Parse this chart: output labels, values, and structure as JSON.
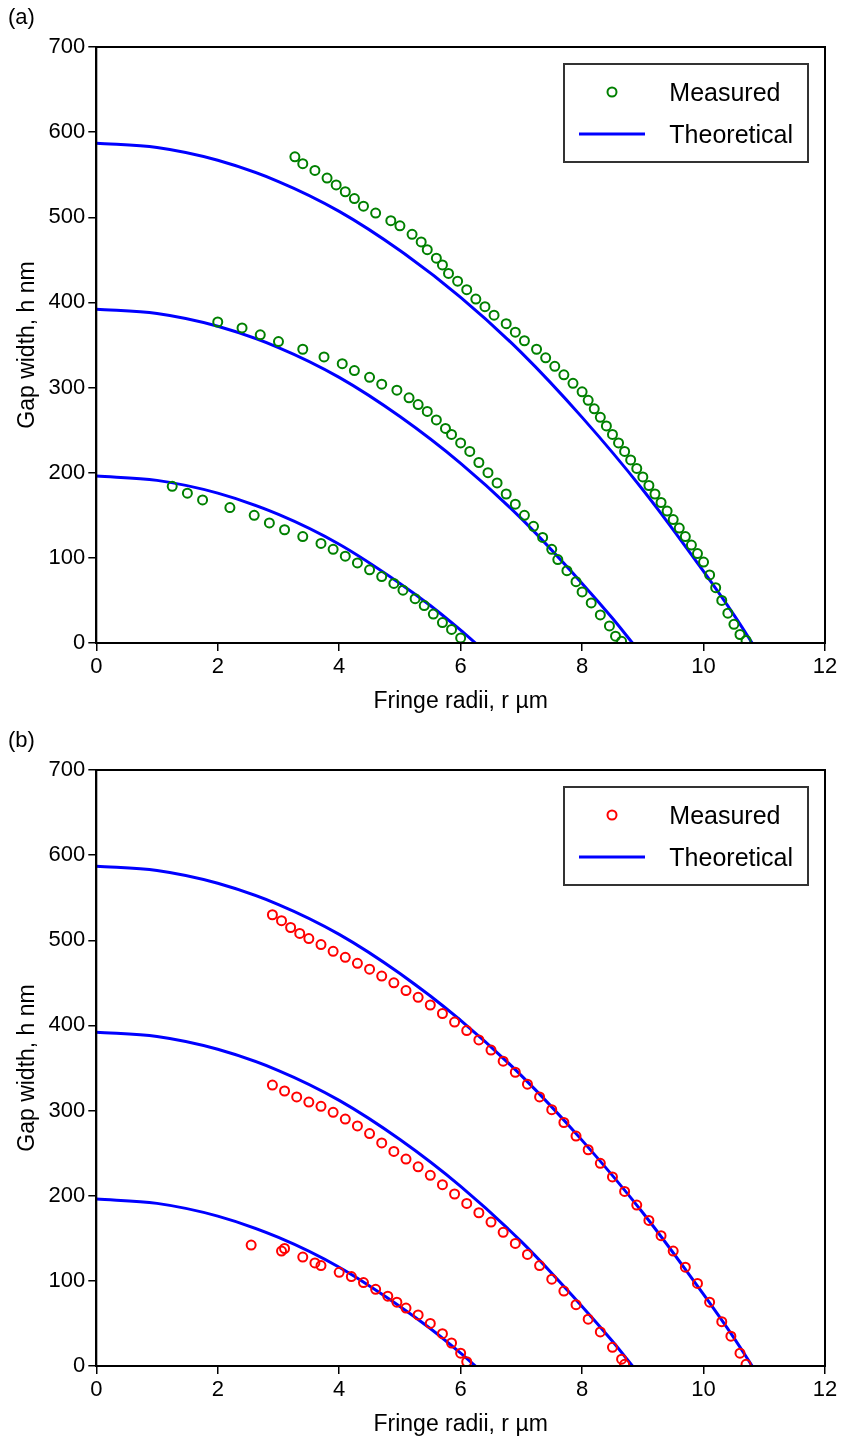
{
  "chart_data": [
    {
      "type": "scatter",
      "title": "(a)",
      "xlabel": "Fringe radii, r µm",
      "ylabel": "Gap width, h nm",
      "xlim": [
        0,
        12
      ],
      "xticks": [
        0,
        2,
        4,
        6,
        8,
        10,
        12
      ],
      "ylim": [
        0,
        700
      ],
      "yticks": [
        0,
        100,
        200,
        300,
        400,
        500,
        600,
        700
      ],
      "grid": false,
      "legend": "top right",
      "line_style": "solid",
      "series": [
        {
          "name": "Measured",
          "marker": "circle",
          "color": "#008000",
          "x": [
            3.27,
            3.4,
            3.6,
            3.8,
            3.95,
            4.1,
            4.25,
            4.4,
            4.6,
            4.85,
            5.0,
            5.2,
            5.35,
            5.45,
            5.6,
            5.7,
            5.8,
            5.95,
            6.1,
            6.25,
            6.4,
            6.55,
            6.75,
            6.9,
            7.05,
            7.25,
            7.4,
            7.55,
            7.7,
            7.85,
            8.0,
            8.1,
            8.2,
            8.3,
            8.4,
            8.5,
            8.6,
            8.7,
            8.8,
            8.9,
            9.0,
            9.1,
            9.2,
            9.3,
            9.4,
            9.5,
            9.6,
            9.7,
            9.8,
            9.9,
            10.0,
            10.1,
            10.2,
            10.3,
            10.4,
            10.5,
            10.6,
            10.7,
            2.0,
            2.4,
            2.7,
            3.0,
            3.4,
            3.75,
            4.05,
            4.25,
            4.5,
            4.7,
            4.95,
            5.15,
            5.3,
            5.45,
            5.6,
            5.75,
            5.85,
            6.0,
            6.15,
            6.3,
            6.45,
            6.6,
            6.75,
            6.9,
            7.05,
            7.2,
            7.35,
            7.5,
            7.6,
            7.75,
            7.9,
            8.0,
            8.15,
            8.3,
            8.45,
            8.55,
            8.65,
            1.25,
            1.5,
            1.75,
            2.2,
            2.6,
            2.85,
            3.1,
            3.4,
            3.7,
            3.9,
            4.1,
            4.3,
            4.5,
            4.7,
            4.9,
            5.05,
            5.25,
            5.4,
            5.55,
            5.7,
            5.85,
            6.0
          ],
          "values": [
            571,
            563,
            555,
            546,
            538,
            530,
            522,
            513,
            505,
            496,
            490,
            480,
            471,
            462,
            452,
            444,
            434,
            425,
            415,
            404,
            395,
            385,
            375,
            365,
            355,
            345,
            335,
            325,
            315,
            305,
            295,
            285,
            275,
            265,
            255,
            245,
            235,
            225,
            215,
            205,
            195,
            185,
            175,
            165,
            155,
            145,
            135,
            125,
            115,
            105,
            95,
            80,
            65,
            50,
            35,
            22,
            10,
            3,
            377,
            370,
            362,
            354,
            345,
            336,
            328,
            320,
            312,
            304,
            297,
            288,
            280,
            272,
            262,
            252,
            245,
            235,
            225,
            212,
            200,
            188,
            175,
            163,
            150,
            137,
            124,
            110,
            98,
            85,
            72,
            60,
            47,
            33,
            20,
            8,
            2,
            184,
            176,
            168,
            159,
            150,
            141,
            133,
            125,
            117,
            110,
            102,
            94,
            86,
            78,
            70,
            62,
            52,
            44,
            34,
            24,
            16,
            6
          ]
        },
        {
          "name": "Theoretical",
          "type": "line",
          "color": "#0000ff",
          "x": [
            0,
            1,
            2,
            3,
            4,
            5,
            6,
            7,
            8,
            9,
            10,
            10.5,
            10.8,
            null,
            0,
            1,
            2,
            3,
            4,
            5,
            6,
            7,
            8,
            8.5,
            8.83,
            null,
            0,
            1,
            2,
            3,
            4,
            5,
            5.5,
            6,
            6.24
          ],
          "values": [
            587,
            582,
            567,
            542,
            507,
            461,
            406,
            341,
            265,
            180,
            84,
            33,
            0,
            null,
            392,
            387,
            372,
            347,
            312,
            266,
            211,
            146,
            70,
            29,
            0,
            null,
            196,
            191,
            176,
            151,
            116,
            70,
            44,
            15,
            0
          ]
        }
      ]
    },
    {
      "type": "scatter",
      "title": "(b)",
      "xlabel": "Fringe radii, r µm",
      "ylabel": "Gap width, h nm",
      "xlim": [
        0,
        12
      ],
      "xticks": [
        0,
        2,
        4,
        6,
        8,
        10,
        12
      ],
      "ylim": [
        0,
        700
      ],
      "yticks": [
        0,
        100,
        200,
        300,
        400,
        500,
        600,
        700
      ],
      "grid": false,
      "legend": "top right",
      "line_style": "solid",
      "series": [
        {
          "name": "Measured",
          "marker": "circle",
          "color": "#ff0000",
          "x": [
            2.9,
            3.05,
            3.2,
            3.35,
            3.5,
            3.7,
            3.9,
            4.1,
            4.3,
            4.5,
            4.7,
            4.9,
            5.1,
            5.3,
            5.5,
            5.7,
            5.9,
            6.1,
            6.3,
            6.5,
            6.7,
            6.9,
            7.1,
            7.3,
            7.5,
            7.7,
            7.9,
            8.1,
            8.3,
            8.5,
            8.7,
            8.9,
            9.1,
            9.3,
            9.5,
            9.7,
            9.9,
            10.1,
            10.3,
            10.45,
            10.6,
            10.7,
            2.9,
            3.1,
            3.3,
            3.5,
            3.7,
            3.9,
            4.1,
            4.3,
            4.5,
            4.7,
            4.9,
            5.1,
            5.3,
            5.5,
            5.7,
            5.9,
            6.1,
            6.3,
            6.5,
            6.7,
            6.9,
            7.1,
            7.3,
            7.5,
            7.7,
            7.9,
            8.1,
            8.3,
            8.5,
            8.65,
            8.7,
            2.55,
            3.05,
            3.1,
            3.4,
            3.6,
            3.7,
            4.0,
            4.2,
            4.4,
            4.6,
            4.8,
            4.95,
            5.1,
            5.3,
            5.5,
            5.7,
            5.85,
            6.0,
            6.1
          ],
          "values": [
            530,
            523,
            515,
            508,
            502,
            495,
            487,
            480,
            473,
            466,
            458,
            450,
            441,
            433,
            424,
            414,
            404,
            394,
            383,
            371,
            358,
            345,
            331,
            316,
            301,
            286,
            270,
            254,
            238,
            222,
            205,
            189,
            171,
            153,
            135,
            116,
            97,
            75,
            52,
            35,
            15,
            2,
            330,
            323,
            316,
            310,
            305,
            298,
            290,
            282,
            273,
            262,
            252,
            243,
            234,
            224,
            213,
            202,
            191,
            180,
            169,
            157,
            144,
            131,
            118,
            102,
            88,
            72,
            55,
            40,
            22,
            8,
            2,
            142,
            135,
            138,
            128,
            121,
            118,
            110,
            105,
            98,
            90,
            82,
            75,
            68,
            60,
            50,
            38,
            27,
            15,
            5
          ]
        },
        {
          "name": "Theoretical",
          "type": "line",
          "color": "#0000ff",
          "x": [
            0,
            1,
            2,
            3,
            4,
            5,
            6,
            7,
            8,
            9,
            10,
            10.5,
            10.8,
            null,
            0,
            1,
            2,
            3,
            4,
            5,
            6,
            7,
            8,
            8.5,
            8.83,
            null,
            0,
            1,
            2,
            3,
            4,
            5,
            5.5,
            6,
            6.24
          ],
          "values": [
            587,
            582,
            567,
            542,
            507,
            461,
            406,
            341,
            265,
            180,
            84,
            33,
            0,
            null,
            392,
            387,
            372,
            347,
            312,
            266,
            211,
            146,
            70,
            29,
            0,
            null,
            196,
            191,
            176,
            151,
            116,
            70,
            44,
            15,
            0
          ]
        }
      ]
    }
  ]
}
